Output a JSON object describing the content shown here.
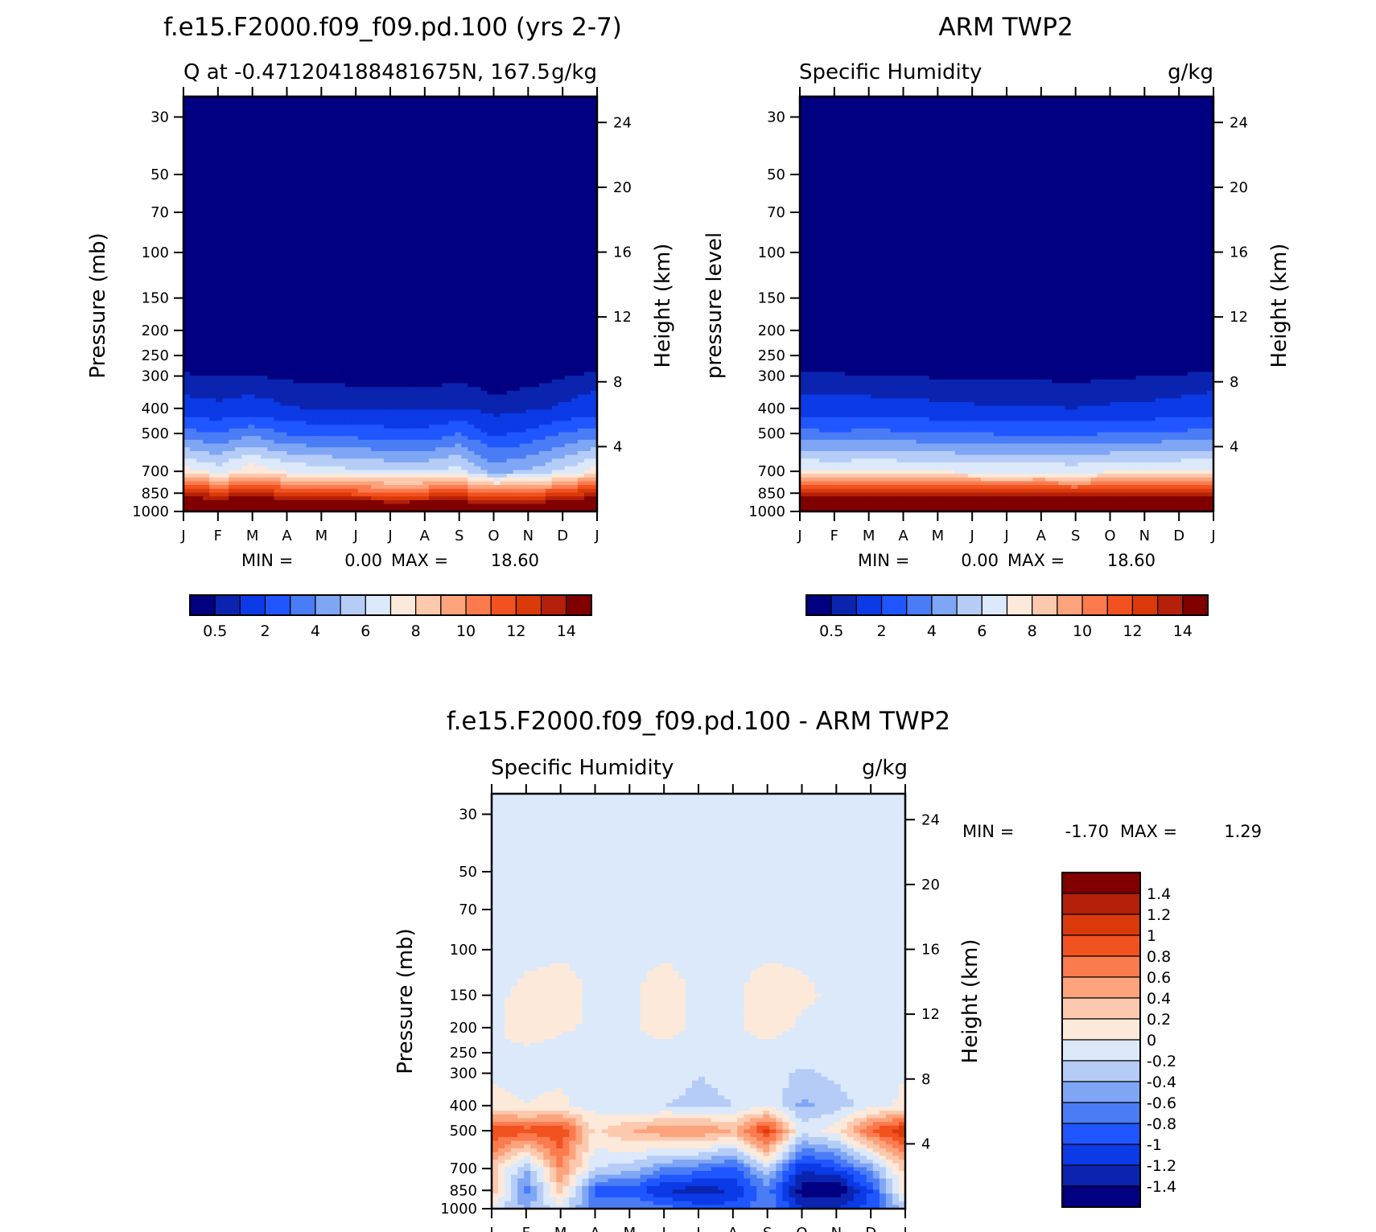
{
  "panels": [
    {
      "id": "model",
      "main_title": "f.e15.F2000.f09_f09.pd.100 (yrs 2-7)",
      "left_string": "Q at -0.471204188481675N, 167.5",
      "right_string": "g/kg",
      "left_axis_label": "Pressure (mb)",
      "right_axis_label": "Height (km)",
      "stats": {
        "min_label": "MIN =",
        "min": "0.00",
        "max_label": "MAX =",
        "max": "18.60"
      }
    },
    {
      "id": "obs",
      "main_title": "ARM TWP2",
      "left_string": "Specific Humidity",
      "right_string": "g/kg",
      "left_axis_label": "pressure level",
      "right_axis_label": "Height (km)",
      "stats": {
        "min_label": "MIN =",
        "min": "0.00",
        "max_label": "MAX =",
        "max": "18.60"
      }
    },
    {
      "id": "diff",
      "main_title": "f.e15.F2000.f09_f09.pd.100 - ARM TWP2",
      "left_string": "Specific Humidity",
      "right_string": "g/kg",
      "left_axis_label": "Pressure (mb)",
      "right_axis_label": "Height (km)",
      "stats": {
        "min_label": "MIN =",
        "min": "-1.70",
        "max_label": "MAX =",
        "max": "1.29"
      }
    }
  ],
  "axes": {
    "pressure_ticks": [
      "30",
      "50",
      "70",
      "100",
      "150",
      "200",
      "250",
      "300",
      "400",
      "500",
      "700",
      "850",
      "1000"
    ],
    "height_ticks_km": [
      "24",
      "20",
      "16",
      "12",
      "8",
      "4"
    ],
    "month_ticks": [
      "J",
      "F",
      "M",
      "A",
      "M",
      "J",
      "J",
      "A",
      "S",
      "O",
      "N",
      "D",
      "J"
    ]
  },
  "colorbars": {
    "abs": {
      "labels": [
        "0.5",
        "2",
        "4",
        "6",
        "8",
        "10",
        "12",
        "14"
      ],
      "colors": [
        "#000080",
        "#0a24b0",
        "#0b3ae6",
        "#1f56ff",
        "#4a7cf5",
        "#7ea6f5",
        "#b5ccf7",
        "#dbe9fa",
        "#fde9da",
        "#fcc9ae",
        "#fca37c",
        "#fb7b4f",
        "#f2521f",
        "#da3a0a",
        "#b4200a",
        "#800000"
      ]
    },
    "diff": {
      "labels": [
        "1.4",
        "1.2",
        "1",
        "0.8",
        "0.6",
        "0.4",
        "0.2",
        "0",
        "-0.2",
        "-0.4",
        "-0.6",
        "-0.8",
        "-1",
        "-1.2",
        "-1.4"
      ],
      "colors": [
        "#000080",
        "#0a24b0",
        "#0b3ae6",
        "#1f56ff",
        "#4a7cf5",
        "#7ea6f5",
        "#b5ccf7",
        "#dbe9fa",
        "#fde9da",
        "#fcc9ae",
        "#fca37c",
        "#fb7b4f",
        "#f2521f",
        "#da3a0a",
        "#b4200a",
        "#800000"
      ]
    }
  },
  "chart_data": [
    {
      "type": "heatmap",
      "panel": "model",
      "x": [
        "J",
        "F",
        "M",
        "A",
        "M",
        "J",
        "J",
        "A",
        "S",
        "O",
        "N",
        "D",
        "J"
      ],
      "y_levels_mb": [
        1000,
        850,
        700,
        500,
        400,
        300,
        250,
        200,
        150,
        100,
        70,
        50,
        30
      ],
      "ylim_mb": [
        1000,
        25
      ],
      "y_scale": "log",
      "units": "g/kg",
      "contour_levels": [
        0.5,
        1,
        2,
        3,
        4,
        5,
        6,
        7,
        8,
        9,
        10,
        11,
        12,
        13,
        14
      ],
      "values": [
        [
          17.5,
          17.2,
          17.6,
          17.0,
          17.0,
          16.8,
          16.6,
          16.6,
          16.8,
          16.2,
          16.2,
          16.6,
          17.3
        ],
        [
          13.5,
          12.3,
          13.4,
          12.3,
          12.1,
          11.6,
          11.5,
          11.6,
          12.0,
          10.7,
          11.3,
          12.0,
          13.3
        ],
        [
          7.5,
          6.6,
          7.8,
          6.9,
          6.6,
          6.2,
          6.0,
          5.9,
          6.5,
          4.6,
          5.1,
          6.1,
          7.5
        ],
        [
          3.4,
          3.0,
          3.7,
          2.9,
          2.6,
          2.6,
          2.4,
          2.3,
          3.0,
          1.8,
          2.2,
          3.0,
          3.6
        ],
        [
          1.3,
          1.15,
          1.35,
          1.05,
          0.95,
          0.9,
          0.85,
          0.85,
          1.0,
          0.65,
          0.85,
          1.1,
          1.45
        ],
        [
          0.55,
          0.5,
          0.5,
          0.4,
          0.35,
          0.33,
          0.3,
          0.3,
          0.35,
          0.25,
          0.3,
          0.45,
          0.6
        ],
        [
          0.2,
          0.2,
          0.2,
          0.15,
          0.15,
          0.15,
          0.12,
          0.12,
          0.15,
          0.1,
          0.12,
          0.18,
          0.22
        ],
        [
          0.1,
          0.1,
          0.1,
          0.08,
          0.08,
          0.08,
          0.06,
          0.06,
          0.08,
          0.05,
          0.06,
          0.08,
          0.1
        ],
        [
          0.04,
          0.04,
          0.04,
          0.04,
          0.04,
          0.04,
          0.04,
          0.04,
          0.04,
          0.04,
          0.04,
          0.04,
          0.04
        ],
        [
          0.01,
          0.01,
          0.01,
          0.01,
          0.01,
          0.01,
          0.01,
          0.01,
          0.01,
          0.01,
          0.01,
          0.01,
          0.01
        ],
        [
          0.005,
          0.005,
          0.005,
          0.005,
          0.005,
          0.005,
          0.005,
          0.005,
          0.005,
          0.005,
          0.005,
          0.005,
          0.005
        ],
        [
          0.003,
          0.003,
          0.003,
          0.003,
          0.003,
          0.003,
          0.003,
          0.003,
          0.003,
          0.003,
          0.003,
          0.003,
          0.003
        ],
        [
          0.002,
          0.002,
          0.002,
          0.002,
          0.002,
          0.002,
          0.002,
          0.002,
          0.002,
          0.002,
          0.002,
          0.002,
          0.002
        ]
      ]
    },
    {
      "type": "heatmap",
      "panel": "obs",
      "x": [
        "J",
        "F",
        "M",
        "A",
        "M",
        "J",
        "J",
        "A",
        "S",
        "O",
        "N",
        "D",
        "J"
      ],
      "y_levels_mb": [
        1000,
        850,
        700,
        500,
        400,
        300,
        250,
        200,
        150,
        100,
        70,
        50,
        30
      ],
      "ylim_mb": [
        1000,
        25
      ],
      "y_scale": "log",
      "units": "g/kg",
      "contour_levels": [
        0.5,
        1,
        2,
        3,
        4,
        5,
        6,
        7,
        8,
        9,
        10,
        11,
        12,
        13,
        14
      ],
      "values": [
        [
          17.6,
          17.6,
          17.7,
          17.7,
          17.6,
          17.5,
          17.5,
          17.5,
          17.4,
          17.4,
          17.4,
          17.5,
          17.6
        ],
        [
          13.1,
          13.0,
          13.1,
          13.2,
          13.0,
          12.8,
          12.8,
          12.8,
          12.7,
          12.8,
          12.9,
          13.0,
          13.1
        ],
        [
          7.2,
          7.0,
          7.2,
          7.1,
          6.9,
          6.8,
          6.7,
          6.8,
          6.7,
          6.9,
          7.0,
          7.1,
          7.2
        ],
        [
          3.3,
          3.2,
          3.3,
          3.2,
          3.1,
          3.0,
          2.9,
          2.9,
          2.8,
          3.0,
          3.1,
          3.2,
          3.4
        ],
        [
          1.35,
          1.3,
          1.3,
          1.25,
          1.15,
          1.1,
          1.05,
          1.05,
          1.0,
          1.1,
          1.15,
          1.25,
          1.4
        ],
        [
          0.6,
          0.55,
          0.5,
          0.5,
          0.45,
          0.42,
          0.4,
          0.4,
          0.38,
          0.42,
          0.48,
          0.52,
          0.62
        ],
        [
          0.2,
          0.2,
          0.2,
          0.18,
          0.18,
          0.16,
          0.16,
          0.16,
          0.15,
          0.16,
          0.18,
          0.2,
          0.22
        ],
        [
          0.1,
          0.1,
          0.1,
          0.09,
          0.09,
          0.08,
          0.08,
          0.08,
          0.08,
          0.08,
          0.09,
          0.1,
          0.1
        ],
        [
          0.04,
          0.04,
          0.04,
          0.04,
          0.04,
          0.04,
          0.04,
          0.04,
          0.04,
          0.04,
          0.04,
          0.04,
          0.04
        ],
        [
          0.01,
          0.01,
          0.01,
          0.01,
          0.01,
          0.01,
          0.01,
          0.01,
          0.01,
          0.01,
          0.01,
          0.01,
          0.01
        ],
        [
          0.005,
          0.005,
          0.005,
          0.005,
          0.005,
          0.005,
          0.005,
          0.005,
          0.005,
          0.005,
          0.005,
          0.005,
          0.005
        ],
        [
          0.003,
          0.003,
          0.003,
          0.003,
          0.003,
          0.003,
          0.003,
          0.003,
          0.003,
          0.003,
          0.003,
          0.003,
          0.003
        ],
        [
          0.002,
          0.002,
          0.002,
          0.002,
          0.002,
          0.002,
          0.002,
          0.002,
          0.002,
          0.002,
          0.002,
          0.002,
          0.002
        ]
      ]
    },
    {
      "type": "heatmap",
      "panel": "diff",
      "x": [
        "J",
        "F",
        "M",
        "A",
        "M",
        "J",
        "J",
        "A",
        "S",
        "O",
        "N",
        "D",
        "J"
      ],
      "y_levels_mb": [
        1000,
        850,
        700,
        500,
        400,
        300,
        250,
        200,
        150,
        100,
        70,
        50,
        30
      ],
      "ylim_mb": [
        1000,
        25
      ],
      "y_scale": "log",
      "units": "g/kg",
      "contour_levels": [
        -1.4,
        -1.2,
        -1,
        -0.8,
        -0.6,
        -0.4,
        -0.2,
        0,
        0.2,
        0.4,
        0.6,
        0.8,
        1,
        1.2,
        1.4
      ],
      "values": [
        [
          -0.1,
          -0.4,
          -0.1,
          -0.7,
          -0.6,
          -0.7,
          -0.9,
          -0.9,
          -0.6,
          -1.2,
          -1.2,
          -0.9,
          -0.3
        ],
        [
          0.4,
          -0.7,
          0.3,
          -0.9,
          -0.9,
          -1.2,
          -1.3,
          -1.2,
          -0.7,
          -1.5,
          -1.6,
          -1.0,
          0.2
        ],
        [
          0.3,
          -0.4,
          0.6,
          -0.2,
          -0.3,
          -0.6,
          -0.7,
          -0.9,
          -0.2,
          -1.2,
          -1.0,
          -0.5,
          0.3
        ],
        [
          1.0,
          0.9,
          1.0,
          0.15,
          0.4,
          0.55,
          0.6,
          0.4,
          1.1,
          -0.1,
          0.1,
          0.8,
          1.2
        ],
        [
          0.05,
          0.0,
          0.05,
          -0.1,
          -0.2,
          -0.2,
          -0.25,
          -0.2,
          -0.05,
          -0.45,
          -0.3,
          -0.1,
          0.05
        ],
        [
          -0.02,
          -0.05,
          -0.05,
          -0.2,
          -0.2,
          -0.1,
          -0.2,
          -0.15,
          -0.05,
          -0.25,
          -0.15,
          -0.05,
          -0.02
        ],
        [
          -0.02,
          -0.02,
          -0.05,
          -0.05,
          -0.05,
          -0.05,
          -0.05,
          -0.05,
          -0.05,
          -0.05,
          -0.05,
          -0.02,
          -0.02
        ],
        [
          -0.02,
          0.05,
          0.02,
          -0.02,
          -0.02,
          0.05,
          -0.02,
          -0.02,
          0.05,
          -0.02,
          -0.02,
          -0.02,
          -0.02
        ],
        [
          -0.02,
          0.02,
          0.05,
          -0.02,
          -0.02,
          0.05,
          -0.02,
          -0.02,
          0.05,
          0.02,
          -0.02,
          -0.02,
          -0.02
        ],
        [
          -0.02,
          -0.02,
          -0.02,
          -0.02,
          -0.02,
          -0.02,
          -0.02,
          -0.02,
          -0.02,
          -0.02,
          -0.02,
          -0.02,
          -0.02
        ],
        [
          -0.02,
          -0.02,
          -0.02,
          -0.02,
          -0.02,
          -0.02,
          -0.02,
          -0.02,
          -0.02,
          -0.02,
          -0.02,
          -0.02,
          -0.02
        ],
        [
          -0.02,
          -0.02,
          -0.02,
          -0.02,
          -0.02,
          -0.02,
          -0.02,
          -0.02,
          -0.02,
          -0.02,
          -0.02,
          -0.02,
          -0.02
        ],
        [
          -0.02,
          -0.02,
          -0.02,
          -0.02,
          -0.02,
          -0.02,
          -0.02,
          -0.02,
          -0.02,
          -0.02,
          -0.02,
          -0.02,
          -0.02
        ]
      ]
    }
  ]
}
